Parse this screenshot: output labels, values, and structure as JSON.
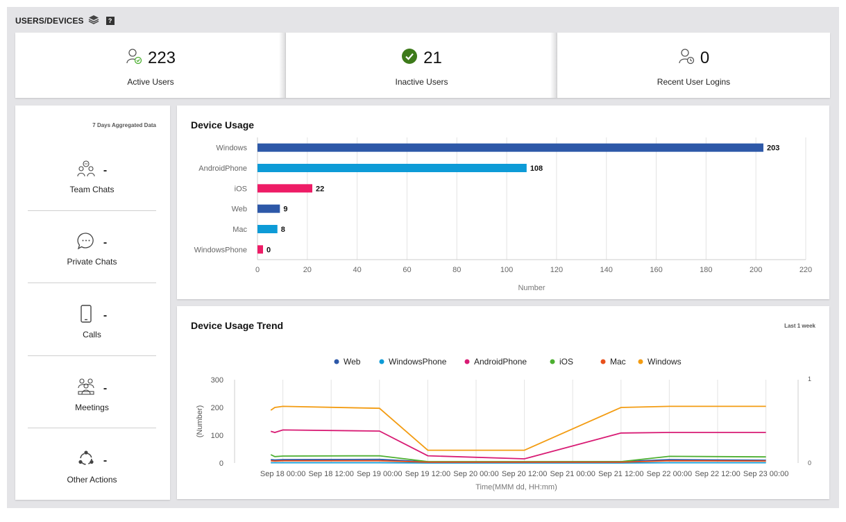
{
  "header": {
    "title": "USERS/DEVICES",
    "help": "?"
  },
  "stats": [
    {
      "value": "223",
      "label": "Active Users",
      "icon": "user-check-icon"
    },
    {
      "value": "21",
      "label": "Inactive Users",
      "icon": "check-circle-icon"
    },
    {
      "value": "0",
      "label": "Recent User Logins",
      "icon": "user-clock-icon"
    }
  ],
  "left_panel": {
    "aggregate_label": "7 Days Aggregated Data",
    "metrics": [
      {
        "label": "Team Chats",
        "value": "-"
      },
      {
        "label": "Private Chats",
        "value": "-"
      },
      {
        "label": "Calls",
        "value": "-"
      },
      {
        "label": "Meetings",
        "value": "-"
      },
      {
        "label": "Other Actions",
        "value": "-"
      }
    ]
  },
  "device_usage": {
    "title": "Device Usage"
  },
  "device_trend": {
    "title": "Device Usage Trend",
    "note": "Last 1 week"
  },
  "colors": {
    "Windows": "#2d58a8",
    "AndroidPhone_bar": "#0d9bd7",
    "iOS_bar": "#ee1c66",
    "Web": "#2d58a8",
    "WindowsPhone_line": "#0d9bd7",
    "AndroidPhone_line": "#d81b74",
    "iOS_line": "#4caf30",
    "Mac_line": "#e8501c",
    "Windows_line": "#f39c12",
    "check_green": "#3d7a1a"
  },
  "chart_data": [
    {
      "type": "bar",
      "orientation": "horizontal",
      "title": "Device Usage",
      "categories": [
        "Windows",
        "AndroidPhone",
        "iOS",
        "Web",
        "Mac",
        "WindowsPhone"
      ],
      "values": [
        203,
        108,
        22,
        9,
        8,
        0
      ],
      "bar_colors": [
        "#2d58a8",
        "#0d9bd7",
        "#ee1c66",
        "#2d58a8",
        "#0d9bd7",
        "#ee1c66"
      ],
      "xlabel": "Number",
      "xlim": [
        0,
        220
      ],
      "xticks": [
        "0",
        "20",
        "40",
        "60",
        "80",
        "100",
        "120",
        "140",
        "160",
        "180",
        "200",
        "220"
      ],
      "grid": true
    },
    {
      "type": "line",
      "title": "Device Usage Trend",
      "xlabel": "Time(MMM dd, HH:mm)",
      "ylabel": "(Number)",
      "ylim": [
        0,
        300
      ],
      "yticks": [
        "0",
        "100",
        "200",
        "300"
      ],
      "y2ticks": [
        "0",
        "1"
      ],
      "xticks": [
        "Sep 18 00:00",
        "Sep 18 12:00",
        "Sep 19 00:00",
        "Sep 19 12:00",
        "Sep 20 00:00",
        "Sep 20 12:00",
        "Sep 21 00:00",
        "Sep 21 12:00",
        "Sep 22 00:00",
        "Sep 22 12:00",
        "Sep 23 00:00"
      ],
      "legend_position": "top",
      "x_hours": [
        -3,
        -2,
        0,
        24,
        36,
        60,
        84,
        96,
        120
      ],
      "series": [
        {
          "name": "Web",
          "color": "#2d58a8",
          "values": [
            12,
            11,
            12,
            13,
            4,
            4,
            5,
            12,
            10
          ]
        },
        {
          "name": "WindowsPhone",
          "color": "#0d9bd7",
          "values": [
            1,
            1,
            1,
            1,
            0,
            0,
            0,
            1,
            1
          ]
        },
        {
          "name": "AndroidPhone",
          "color": "#d81b74",
          "values": [
            114,
            110,
            119,
            115,
            26,
            15,
            108,
            110,
            110
          ]
        },
        {
          "name": "iOS",
          "color": "#4caf30",
          "values": [
            30,
            23,
            25,
            26,
            5,
            5,
            5,
            24,
            22
          ]
        },
        {
          "name": "Mac",
          "color": "#e8501c",
          "values": [
            8,
            7,
            8,
            8,
            3,
            3,
            3,
            8,
            7
          ]
        },
        {
          "name": "Windows",
          "color": "#f39c12",
          "values": [
            190,
            200,
            204,
            197,
            46,
            46,
            200,
            204,
            204
          ]
        }
      ]
    }
  ]
}
